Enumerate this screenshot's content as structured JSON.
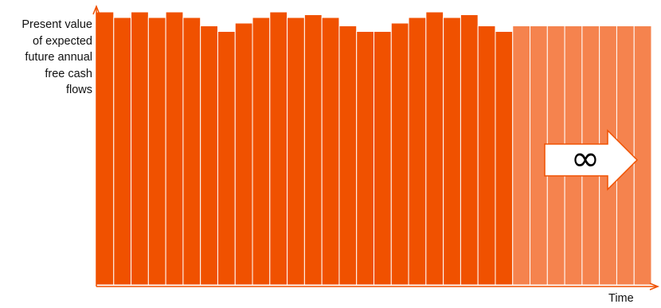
{
  "chart_data": {
    "type": "bar",
    "ylabel_lines": [
      "Present value",
      "of expected",
      "future annual",
      "free cash",
      "flows"
    ],
    "xlabel": "Time",
    "annotation": "∞",
    "ylim": [
      0,
      100
    ],
    "series": [
      {
        "color": "#f05100",
        "values": [
          98,
          96,
          98,
          96,
          98,
          96,
          93,
          91,
          94,
          96,
          98,
          96,
          97,
          96,
          93,
          91,
          91,
          94,
          96,
          98,
          96,
          97,
          93,
          91
        ]
      },
      {
        "color": "#f5834e",
        "values": [
          93,
          93,
          93,
          93,
          93,
          93,
          93,
          93
        ]
      }
    ],
    "colors": {
      "axis": "#f05100",
      "bar_edge": "#ffffff",
      "arrow_fill": "#ffffff",
      "arrow_stroke": "#f05100"
    }
  }
}
